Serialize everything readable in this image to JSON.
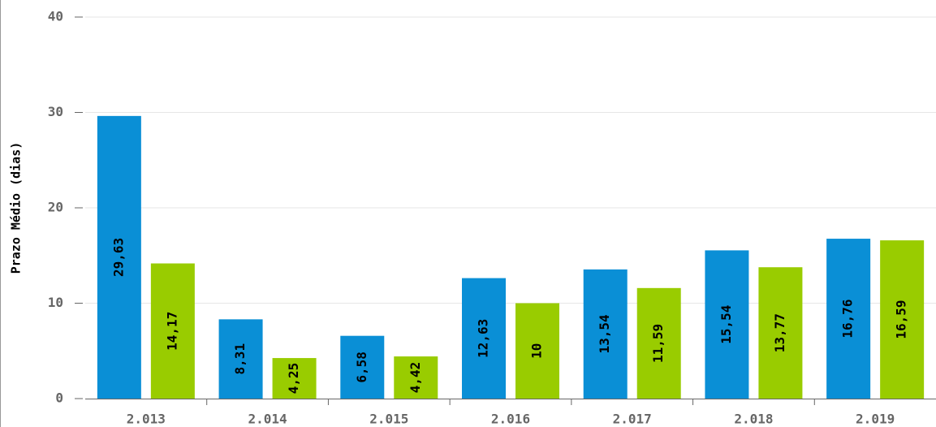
{
  "chart_data": {
    "type": "bar",
    "y_label": "Prazo Médio (dias)",
    "categories": [
      "2.013",
      "2.014",
      "2.015",
      "2.016",
      "2.017",
      "2.018",
      "2.019"
    ],
    "series": [
      {
        "color": "#0a8fd6",
        "values": [
          29.63,
          8.31,
          6.58,
          12.63,
          13.54,
          15.54,
          16.76
        ],
        "value_labels": [
          "29,63",
          "8,31",
          "6,58",
          "12,63",
          "13,54",
          "15,54",
          "16,76"
        ]
      },
      {
        "color": "#99cc00",
        "values": [
          14.17,
          4.25,
          4.42,
          10,
          11.59,
          13.77,
          16.59
        ],
        "value_labels": [
          "14,17",
          "4,25",
          "4,42",
          "10",
          "11,59",
          "13,77",
          "16,59"
        ]
      }
    ],
    "ylim": [
      0,
      40
    ],
    "yticks": [
      0,
      10,
      20,
      30,
      40
    ],
    "grid": true
  }
}
